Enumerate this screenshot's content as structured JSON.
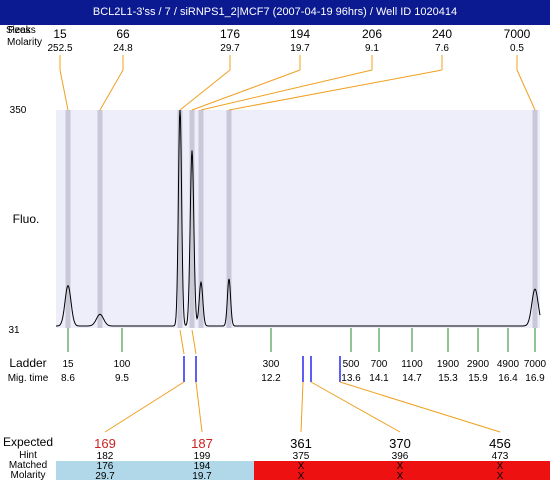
{
  "title": "BCL2L1-3'ss / 7 / siRNPS1_2|MCF7 (2007-04-19 96hrs) / Well ID 1020414",
  "header": {
    "sizes_label": "Sizes",
    "peaks_label": "Peaks",
    "molarity_label": "Molarity"
  },
  "peaks": [
    {
      "size": "15",
      "molarity": "252.5"
    },
    {
      "size": "66",
      "molarity": "24.8"
    },
    {
      "size": "176",
      "molarity": "29.7"
    },
    {
      "size": "194",
      "molarity": "19.7"
    },
    {
      "size": "206",
      "molarity": "9.1"
    },
    {
      "size": "240",
      "molarity": "7.6"
    },
    {
      "size": "7000",
      "molarity": "0.5"
    }
  ],
  "fluo_label": "Fluo.",
  "ladder": {
    "label": "Ladder",
    "migtime_label": "Mig. time",
    "bands": [
      {
        "size": "15",
        "migtime": "8.6"
      },
      {
        "size": "100",
        "migtime": "9.5"
      },
      {
        "size": "300",
        "migtime": "12.2"
      },
      {
        "size": "500",
        "migtime": "13.6"
      },
      {
        "size": "700",
        "migtime": "14.1"
      },
      {
        "size": "1100",
        "migtime": "14.7"
      },
      {
        "size": "1900",
        "migtime": "15.3"
      },
      {
        "size": "2900",
        "migtime": "15.9"
      },
      {
        "size": "4900",
        "migtime": "16.4"
      },
      {
        "size": "7000",
        "migtime": "16.9"
      }
    ]
  },
  "expected": {
    "label": "Expected",
    "hint_label": "Hint",
    "matched_label": "Matched",
    "molarity_label": "Molarity",
    "rows": [
      {
        "expected": "169",
        "hint": "182",
        "matched": "176",
        "molarity": "29.7",
        "status": "matched"
      },
      {
        "expected": "187",
        "hint": "199",
        "matched": "194",
        "molarity": "19.7",
        "status": "matched"
      },
      {
        "expected": "361",
        "hint": "375",
        "matched": "X",
        "molarity": "X",
        "status": "missing"
      },
      {
        "expected": "370",
        "hint": "396",
        "matched": "X",
        "molarity": "X",
        "status": "missing"
      },
      {
        "expected": "456",
        "hint": "473",
        "matched": "X",
        "molarity": "X",
        "status": "missing"
      }
    ]
  },
  "colors": {
    "title_bg": "#0b1a91",
    "plot_bg": "#eeeefa",
    "peak_band": "#c8c8d8",
    "connector": "#f0a020",
    "ladder_tick": "#228822",
    "hint_marker": "#1a1aee",
    "expected_matched": "#cc2222",
    "matched_bg": "#b0d8e8",
    "missing_bg": "#ee1111"
  },
  "chart_data": {
    "type": "line",
    "title": "BCL2L1-3'ss / 7 / siRNPS1_2|MCF7 (2007-04-19 96hrs) / Well ID 1020414",
    "xlabel": "",
    "ylabel": "Fluo.",
    "ylim": [
      31,
      350
    ],
    "grid": false,
    "series": [
      {
        "peaks": [
          {
            "size": 15,
            "molarity": 252.5,
            "height": 90
          },
          {
            "size": 66,
            "molarity": 24.8,
            "height": 48
          },
          {
            "size": 176,
            "molarity": 29.7,
            "height": 350
          },
          {
            "size": 194,
            "molarity": 19.7,
            "height": 288
          },
          {
            "size": 206,
            "molarity": 9.1,
            "height": 95
          },
          {
            "size": 240,
            "molarity": 7.6,
            "height": 100
          },
          {
            "size": 7000,
            "molarity": 0.5,
            "height": 85
          }
        ]
      }
    ],
    "ladder": [
      15,
      100,
      300,
      500,
      700,
      1100,
      1900,
      2900,
      4900,
      7000
    ],
    "ladder_migtime": [
      8.6,
      9.5,
      12.2,
      13.6,
      14.1,
      14.7,
      15.3,
      15.9,
      16.4,
      16.9
    ],
    "yticks": [
      "350",
      "31"
    ]
  }
}
